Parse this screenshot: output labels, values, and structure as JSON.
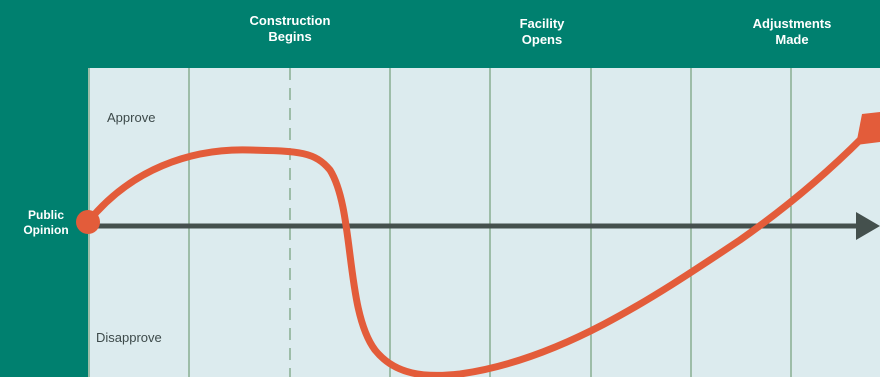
{
  "header": {
    "milestones": [
      {
        "label": "Construction\nBegins"
      },
      {
        "label": "Facility\nOpens"
      },
      {
        "label": "Adjustments\nMade"
      }
    ]
  },
  "axis": {
    "label": "Public\nOpinion"
  },
  "zones": {
    "approve": "Approve",
    "disapprove": "Disapprove"
  },
  "colors": {
    "teal": "#00806f",
    "panel": "#dcebee",
    "grid": "#5e8f63",
    "axis": "#44504d",
    "curve": "#e35c3a"
  }
}
